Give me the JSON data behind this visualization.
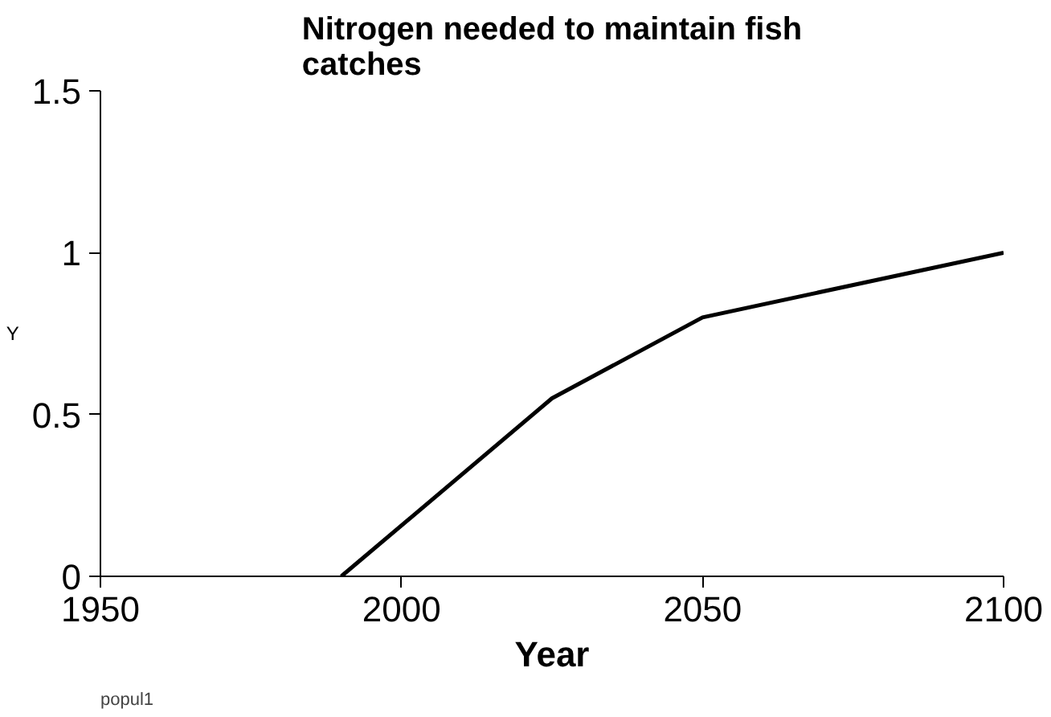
{
  "chart_data": {
    "type": "line",
    "title": "Nitrogen needed to maintain fish catches",
    "xlabel": "Year",
    "ylabel": "Y",
    "annotations": [
      "popul1"
    ],
    "x": [
      1990,
      2025,
      2050,
      2100
    ],
    "series": [
      {
        "color": "#000000",
        "values": [
          0,
          0.55,
          0.8,
          1.0
        ]
      }
    ],
    "xlim": [
      1950,
      2100
    ],
    "xticks": [
      1950,
      2000,
      2050,
      2100
    ],
    "ylim": [
      0,
      1.5
    ],
    "yticks": [
      0,
      0.5,
      1,
      1.5
    ],
    "grid": false,
    "marker": "none",
    "line_style": "solid"
  }
}
